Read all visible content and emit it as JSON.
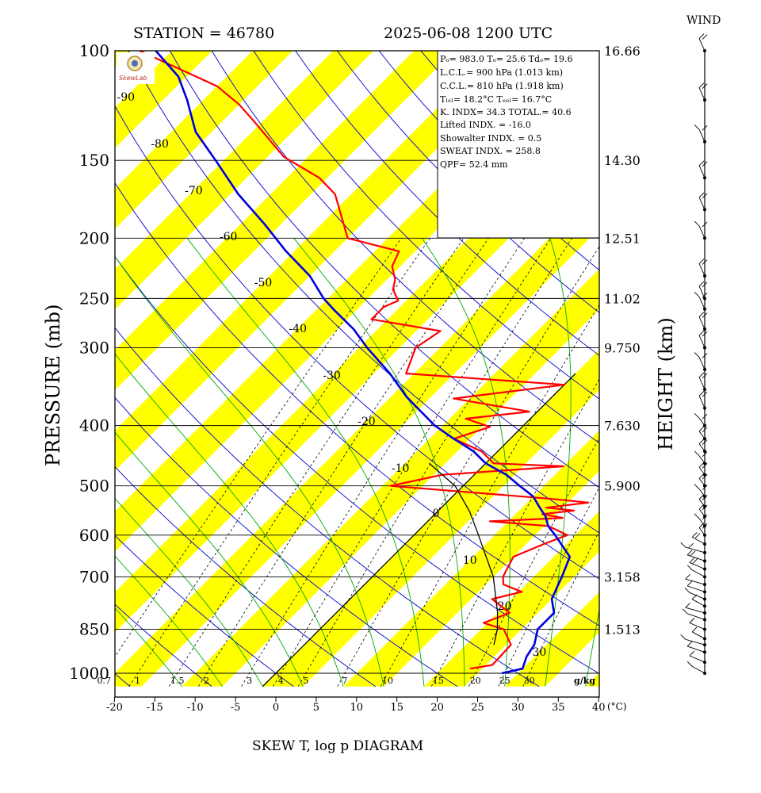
{
  "header": {
    "station_label": "STATION = 46780",
    "time_label": "2025-06-08 1200 UTC",
    "wind_label": "WIND",
    "x_title": "SKEW T, log p DIAGRAM",
    "y_title": "PRESSURE (mb)",
    "y2_title": "HEIGHT (km)",
    "x_unit": "(°C)",
    "mr_unit": "g/kg"
  },
  "indices": {
    "line1": "Pₒ= 983.0 Tₒ= 25.6 Tdₒ= 19.6",
    "line2": "L.C.L.= 900 hPa (1.013 km)",
    "line3": "C.C.L.= 810 hPa (1.918 km)",
    "line4": "Tₗₑₗ= 18.2°C Tₑₑₗ= 16.7°C",
    "line5": "K. INDX= 34.3   TOTAL.= 40.6",
    "line6": "Lifted INDX. = -16.0",
    "line7": "Showalter INDX. =     0.5",
    "line8": "SWEAT INDX. =   258.8",
    "line9": "QPF= 52.4 mm"
  },
  "logo": {
    "text": "SkewLab"
  },
  "colors": {
    "temperature": "#ff0000",
    "dewpoint_profile": "#0000dd",
    "parcel": "#000000",
    "isotherm_band": "#ffff00",
    "dry_adiabat": "#0000cc",
    "moist_adiabat": "#00aa00",
    "mixing_ratio": "#000000"
  },
  "chart_data": {
    "type": "line",
    "title": "SKEW T, log p DIAGRAM",
    "xlabel": "(°C)",
    "ylabel": "PRESSURE (mb)",
    "y2label": "HEIGHT (km)",
    "xlim": [
      -20,
      40
    ],
    "ylim": [
      1000,
      100
    ],
    "y_scale": "log",
    "x_ticks": [
      -20,
      -15,
      -10,
      -5,
      0,
      5,
      10,
      15,
      20,
      25,
      30,
      35,
      40
    ],
    "pressure_levels": [
      100,
      150,
      200,
      250,
      300,
      400,
      500,
      600,
      700,
      850,
      1000
    ],
    "height_ticks": [
      {
        "p": 100,
        "label": "16.66"
      },
      {
        "p": 150,
        "label": "14.30"
      },
      {
        "p": 200,
        "label": "12.51"
      },
      {
        "p": 250,
        "label": "11.02"
      },
      {
        "p": 300,
        "label": "9.750"
      },
      {
        "p": 400,
        "label": "7.630"
      },
      {
        "p": 500,
        "label": "5.900"
      },
      {
        "p": 700,
        "label": "3.158"
      },
      {
        "p": 850,
        "label": "1.513"
      }
    ],
    "isotherm_labels": [
      -90,
      -80,
      -70,
      -60,
      -50,
      -40,
      -30,
      -20,
      -10,
      0,
      10,
      20,
      30
    ],
    "mixing_ratio_labels": [
      "0.7",
      "1",
      "1.5",
      "2",
      "3",
      "4",
      "5",
      "7",
      "10",
      "15",
      "20",
      "25",
      "30"
    ],
    "series": [
      {
        "name": "",
        "role": "red-profile",
        "points": [
          [
            983,
            23.5
          ],
          [
            970,
            25.8
          ],
          [
            900,
            25.6
          ],
          [
            850,
            22.8
          ],
          [
            830,
            19.5
          ],
          [
            800,
            21.5
          ],
          [
            760,
            17.6
          ],
          [
            740,
            20.4
          ],
          [
            720,
            17.2
          ],
          [
            700,
            16.2
          ],
          [
            650,
            15.0
          ],
          [
            620,
            17.2
          ],
          [
            600,
            19.0
          ],
          [
            580,
            15.5
          ],
          [
            570,
            7.7
          ],
          [
            563,
            16.3
          ],
          [
            555,
            13.3
          ],
          [
            548,
            16.8
          ],
          [
            542,
            13.0
          ],
          [
            532,
            17.6
          ],
          [
            525,
            12.8
          ],
          [
            500,
            -9.0
          ],
          [
            480,
            -4.0
          ],
          [
            465,
            10.0
          ],
          [
            460,
            1.0
          ],
          [
            440,
            -2.0
          ],
          [
            420,
            -7.0
          ],
          [
            402,
            -4.0
          ],
          [
            390,
            -8.0
          ],
          [
            380,
            -1.0
          ],
          [
            362,
            -12.0
          ],
          [
            344,
            0.0
          ],
          [
            330,
            -21.0
          ],
          [
            300,
            -23.0
          ],
          [
            282,
            -22.0
          ],
          [
            270,
            -32.0
          ],
          [
            258,
            -32.0
          ],
          [
            252,
            -31.0
          ],
          [
            242,
            -33.0
          ],
          [
            233,
            -34.0
          ],
          [
            222,
            -36.0
          ],
          [
            210,
            -37.0
          ],
          [
            200,
            -45.0
          ],
          [
            170,
            -52.0
          ],
          [
            160,
            -56.0
          ],
          [
            148,
            -63.0
          ],
          [
            130,
            -71.0
          ],
          [
            122,
            -75.0
          ],
          [
            114,
            -80.0
          ],
          [
            100,
            -94.0
          ]
        ]
      },
      {
        "name": "",
        "role": "blue-profile",
        "points": [
          [
            1000,
            28.0
          ],
          [
            983,
            30.0
          ],
          [
            940,
            29.0
          ],
          [
            900,
            28.5
          ],
          [
            850,
            27.0
          ],
          [
            800,
            27.0
          ],
          [
            760,
            25.0
          ],
          [
            720,
            24.0
          ],
          [
            700,
            23.5
          ],
          [
            650,
            22.0
          ],
          [
            600,
            17.5
          ],
          [
            580,
            15.5
          ],
          [
            560,
            14.0
          ],
          [
            540,
            12.0
          ],
          [
            520,
            10.0
          ],
          [
            500,
            7.0
          ],
          [
            480,
            4.0
          ],
          [
            460,
            0.0
          ],
          [
            440,
            -3.0
          ],
          [
            420,
            -7.0
          ],
          [
            400,
            -11.0
          ],
          [
            360,
            -18.0
          ],
          [
            330,
            -23.0
          ],
          [
            300,
            -29.0
          ],
          [
            280,
            -33.0
          ],
          [
            260,
            -38.0
          ],
          [
            250,
            -40.5
          ],
          [
            230,
            -45.0
          ],
          [
            210,
            -51.0
          ],
          [
            190,
            -57.0
          ],
          [
            170,
            -64.0
          ],
          [
            150,
            -71.0
          ],
          [
            135,
            -77.0
          ],
          [
            120,
            -82.0
          ],
          [
            110,
            -86.0
          ],
          [
            100,
            -92.0
          ]
        ]
      },
      {
        "name": "",
        "role": "black-profile",
        "points": [
          [
            900,
            23.5
          ],
          [
            850,
            22.0
          ],
          [
            800,
            20.0
          ],
          [
            700,
            15.0
          ],
          [
            600,
            8.0
          ],
          [
            550,
            4.0
          ],
          [
            500,
            -1.0
          ],
          [
            460,
            -7.0
          ]
        ]
      }
    ],
    "wind_levels": [
      1000,
      960,
      925,
      900,
      880,
      850,
      820,
      800,
      780,
      760,
      740,
      720,
      700,
      680,
      660,
      640,
      620,
      600,
      580,
      560,
      540,
      520,
      500,
      480,
      460,
      440,
      420,
      400,
      375,
      350,
      325,
      300,
      280,
      260,
      250,
      230,
      200,
      180,
      160,
      140,
      120,
      100
    ]
  }
}
